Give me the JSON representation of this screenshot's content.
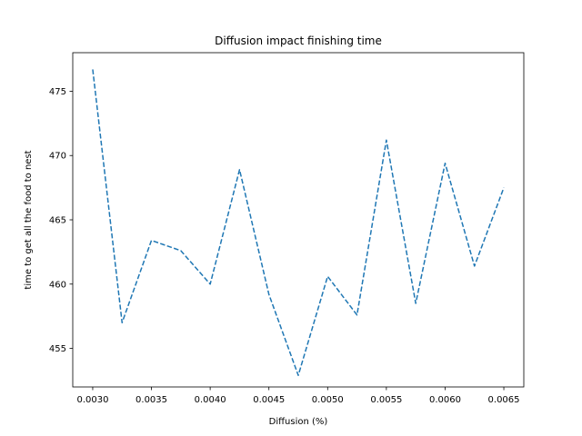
{
  "chart_data": {
    "type": "line",
    "title": "Diffusion impact finishing time",
    "xlabel": "Diffusion (%)",
    "ylabel": "time to get all the food to nest",
    "xlim": [
      0.00283,
      0.00667
    ],
    "ylim": [
      452.0,
      478.0
    ],
    "grid": false,
    "line_style": "dashed",
    "series_color": "#1f77b4",
    "x_ticks": [
      {
        "value": 0.003,
        "label": "0.0030"
      },
      {
        "value": 0.0035,
        "label": "0.0035"
      },
      {
        "value": 0.004,
        "label": "0.0040"
      },
      {
        "value": 0.0045,
        "label": "0.0045"
      },
      {
        "value": 0.005,
        "label": "0.0050"
      },
      {
        "value": 0.0055,
        "label": "0.0055"
      },
      {
        "value": 0.006,
        "label": "0.0060"
      },
      {
        "value": 0.0065,
        "label": "0.0065"
      }
    ],
    "y_ticks": [
      {
        "value": 455,
        "label": "455"
      },
      {
        "value": 460,
        "label": "460"
      },
      {
        "value": 465,
        "label": "465"
      },
      {
        "value": 470,
        "label": "470"
      },
      {
        "value": 475,
        "label": "475"
      }
    ],
    "series": [
      {
        "x": [
          0.003,
          0.00325,
          0.0035,
          0.00375,
          0.004,
          0.00425,
          0.0045,
          0.00475,
          0.005,
          0.00525,
          0.0055,
          0.00575,
          0.006,
          0.00625,
          0.0065
        ],
        "y": [
          476.7,
          457.0,
          463.4,
          462.6,
          460.0,
          468.9,
          459.2,
          452.9,
          460.6,
          457.6,
          471.2,
          458.5,
          469.4,
          461.4,
          467.5
        ]
      }
    ]
  }
}
